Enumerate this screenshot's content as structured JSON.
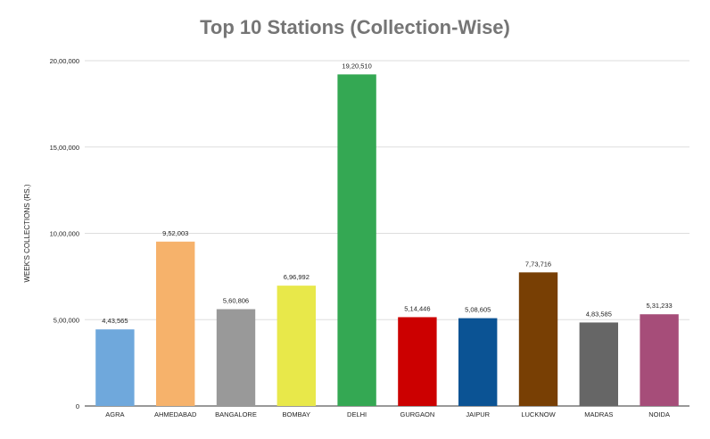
{
  "chart_data": {
    "type": "bar",
    "title": "Top 10 Stations (Collection-Wise)",
    "xlabel": "",
    "ylabel": "WEEK'S COLLECTIONS (RS.)",
    "ylim": [
      0,
      2000000
    ],
    "yticks": [
      {
        "value": 0,
        "label": "0"
      },
      {
        "value": 500000,
        "label": "5,00,000"
      },
      {
        "value": 1000000,
        "label": "10,00,000"
      },
      {
        "value": 1500000,
        "label": "15,00,000"
      },
      {
        "value": 2000000,
        "label": "20,00,000"
      }
    ],
    "grid": true,
    "legend": "none",
    "categories": [
      "AGRA",
      "AHMEDABAD",
      "BANGALORE",
      "BOMBAY",
      "DELHI",
      "GURGAON",
      "JAIPUR",
      "LUCKNOW",
      "MADRAS",
      "NOIDA"
    ],
    "values": [
      443565,
      952003,
      560806,
      696992,
      1920510,
      514446,
      508605,
      773716,
      483585,
      531233
    ],
    "data_labels": [
      "4,43,565",
      "9,52,003",
      "5,60,806",
      "6,96,992",
      "19,20,510",
      "5,14,446",
      "5,08,605",
      "7,73,716",
      "4,83,585",
      "5,31,233"
    ],
    "colors": [
      "#6fa8dc",
      "#f6b26b",
      "#999999",
      "#e8e84a",
      "#34a853",
      "#cc0000",
      "#0b5394",
      "#783f04",
      "#666666",
      "#a64d79"
    ]
  }
}
